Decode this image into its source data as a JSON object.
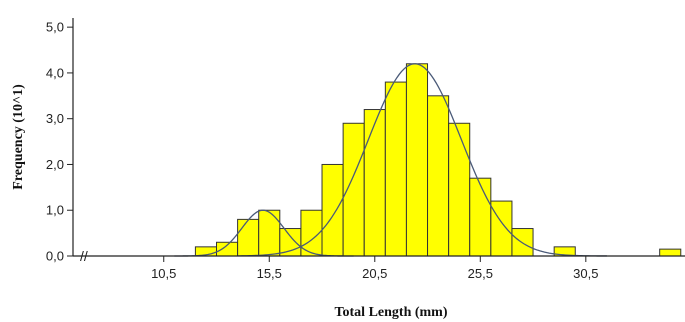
{
  "chart_data": {
    "type": "bar",
    "xlabel": "Total Length (mm)",
    "ylabel": "Frequency (10^1)",
    "x_tick_labels": [
      "10,5",
      "15,5",
      "20,5",
      "25,5",
      "30,5"
    ],
    "x_ticks": [
      10.5,
      15.5,
      20.5,
      25.5,
      30.5
    ],
    "y_tick_labels": [
      "0,0",
      "1,0",
      "2,0",
      "3,0",
      "4,0",
      "5,0"
    ],
    "y_ticks": [
      0,
      1,
      2,
      3,
      4,
      5
    ],
    "xlim": [
      6.2,
      35.2
    ],
    "ylim": [
      0,
      5.2
    ],
    "axis_break_label": "//",
    "bin_width": 1,
    "bins": [
      {
        "x": 12.5,
        "value": 0.2
      },
      {
        "x": 13.5,
        "value": 0.3
      },
      {
        "x": 14.5,
        "value": 0.8
      },
      {
        "x": 15.5,
        "value": 1.0
      },
      {
        "x": 16.5,
        "value": 0.6
      },
      {
        "x": 17.5,
        "value": 1.0
      },
      {
        "x": 18.5,
        "value": 2.0
      },
      {
        "x": 19.5,
        "value": 2.9
      },
      {
        "x": 20.5,
        "value": 3.2
      },
      {
        "x": 21.5,
        "value": 3.8
      },
      {
        "x": 22.5,
        "value": 4.2
      },
      {
        "x": 23.5,
        "value": 3.5
      },
      {
        "x": 24.5,
        "value": 2.9
      },
      {
        "x": 25.5,
        "value": 1.7
      },
      {
        "x": 26.5,
        "value": 1.2
      },
      {
        "x": 27.5,
        "value": 0.6
      },
      {
        "x": 29.5,
        "value": 0.2
      },
      {
        "x": 34.5,
        "value": 0.15
      }
    ],
    "fitted_curves": [
      {
        "mean": 15.2,
        "sd": 1.0,
        "peak": 1.0,
        "range": [
          11.0,
          19.5
        ]
      },
      {
        "mean": 22.4,
        "sd": 2.2,
        "peak": 4.2,
        "range": [
          14.0,
          31.5
        ]
      }
    ],
    "bar_color": "#ffff00",
    "bar_edge_color": "#333333",
    "curve_color": "#4a5a78"
  }
}
